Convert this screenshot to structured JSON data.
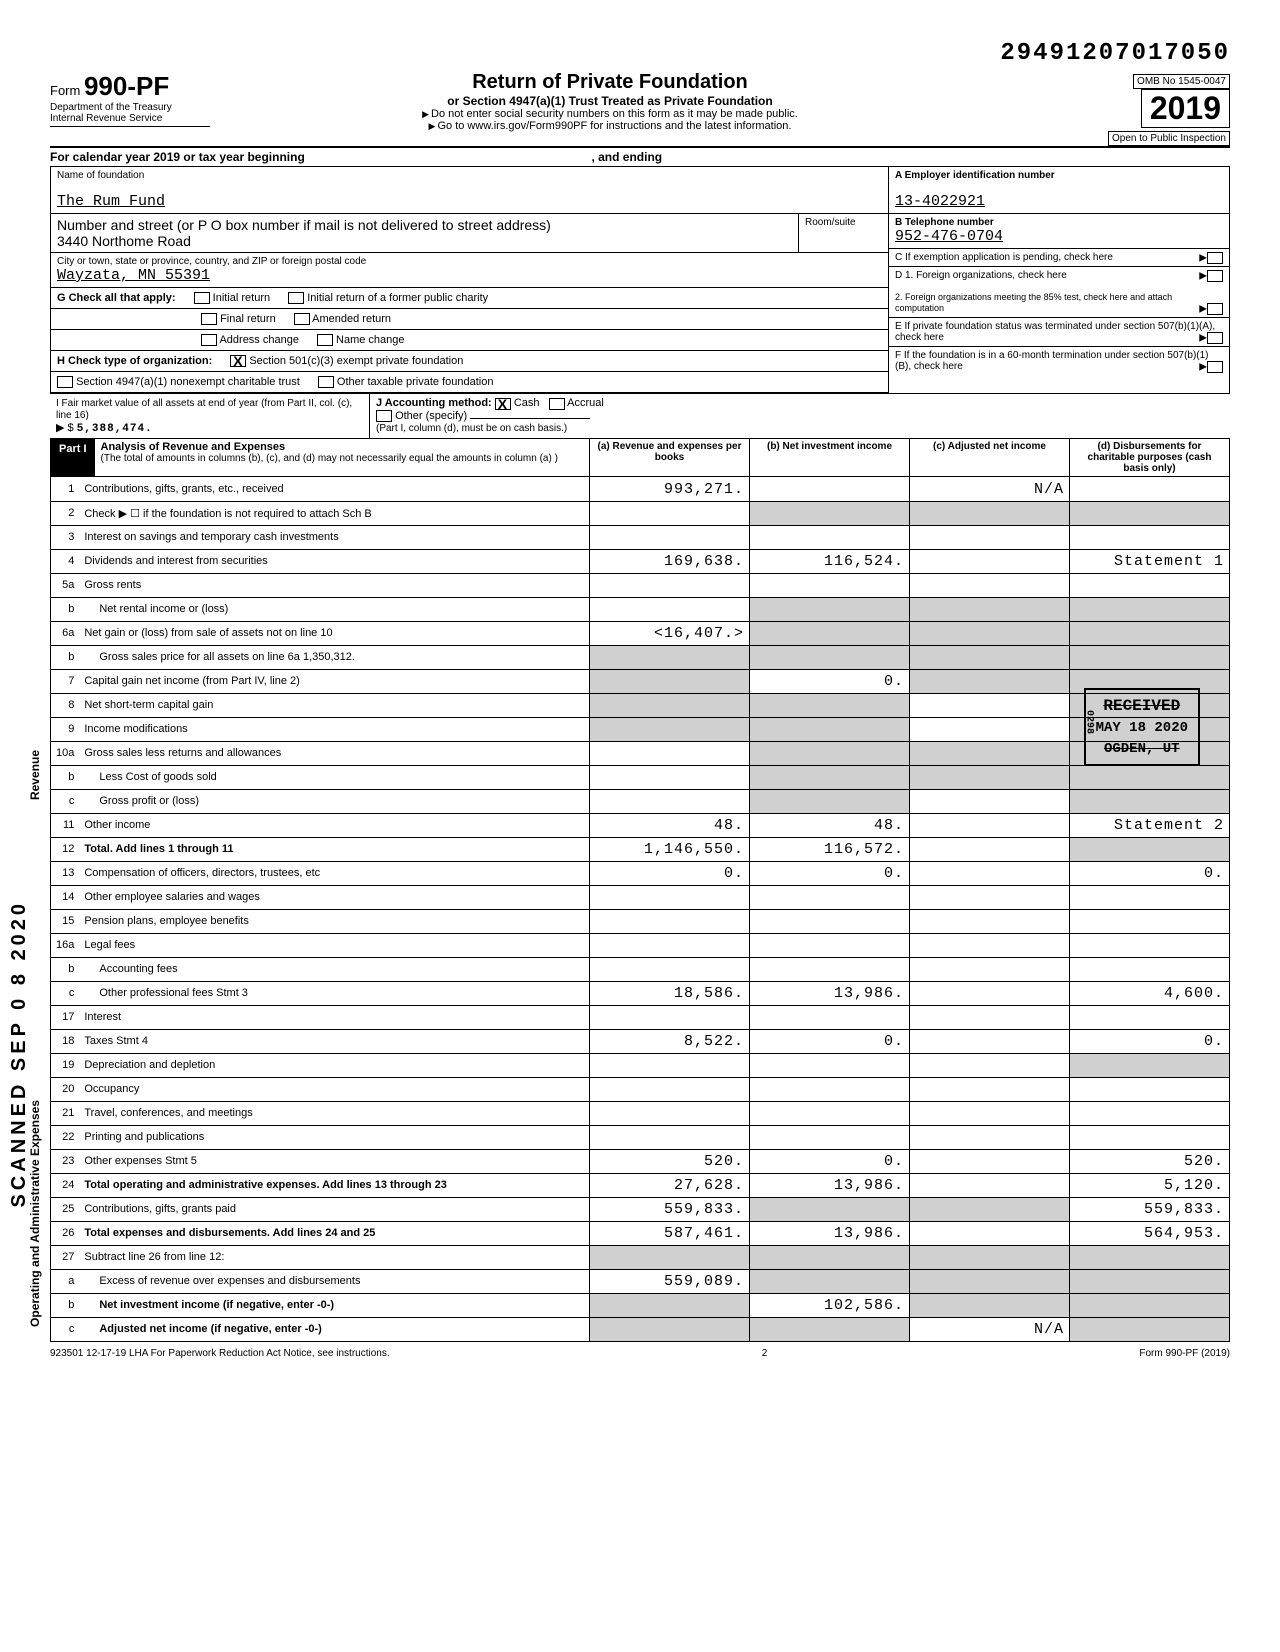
{
  "dln": "29491207017050",
  "header": {
    "form": "990-PF",
    "title": "Return of Private Foundation",
    "subtitle": "or Section 4947(a)(1) Trust Treated as Private Foundation",
    "warn1": "Do not enter social security numbers on this form as it may be made public.",
    "warn2": "Go to www.irs.gov/Form990PF for instructions and the latest information.",
    "dept": "Department of the Treasury",
    "irs": "Internal Revenue Service",
    "omb": "OMB No  1545-0047",
    "year": "2019",
    "inspect": "Open to Public Inspection",
    "calyear": "For calendar year 2019 or tax year beginning",
    "ending": ", and ending"
  },
  "foundation": {
    "name_label": "Name of foundation",
    "name": "The Rum Fund",
    "addr_label": "Number and street (or P O  box number if mail is not delivered to street address)",
    "addr": "3440 Northome Road",
    "room_label": "Room/suite",
    "city_label": "City or town, state or province, country, and ZIP or foreign postal code",
    "city": "Wayzata, MN   55391"
  },
  "boxA": {
    "label": "A  Employer identification number",
    "val": "13-4022921"
  },
  "boxB": {
    "label": "B  Telephone number",
    "val": "952-476-0704"
  },
  "boxC": {
    "label": "C  If exemption application is pending, check here"
  },
  "boxD": {
    "d1": "D  1. Foreign organizations, check here",
    "d2": "2.  Foreign organizations meeting the 85% test, check here and attach computation"
  },
  "boxE": {
    "label": "E  If private foundation status was terminated under section 507(b)(1)(A), check here"
  },
  "boxF": {
    "label": "F  If the foundation is in a 60-month termination under section 507(b)(1)(B), check here"
  },
  "G": {
    "label": "G  Check all that apply:",
    "opts": [
      "Initial return",
      "Initial return of a former public charity",
      "Final return",
      "Amended return",
      "Address change",
      "Name change"
    ]
  },
  "H": {
    "label": "H  Check type of organization:",
    "opt1": "Section 501(c)(3) exempt private foundation",
    "opt2": "Section 4947(a)(1) nonexempt charitable trust",
    "opt3": "Other taxable private foundation"
  },
  "I": {
    "label": "I  Fair market value of all assets at end of year (from Part II, col. (c), line 16)",
    "val": "5,388,474."
  },
  "J": {
    "label": "J  Accounting method:",
    "cash": "Cash",
    "accrual": "Accrual",
    "other": "Other (specify)",
    "note": "(Part I, column (d), must be on cash basis.)"
  },
  "part1": {
    "tag": "Part I",
    "title": "Analysis of Revenue and Expenses",
    "note": "(The total of amounts in columns (b), (c), and (d) may not necessarily equal the amounts in column (a) )",
    "colA": "(a) Revenue and expenses per books",
    "colB": "(b) Net investment income",
    "colC": "(c) Adjusted net income",
    "colD": "(d) Disbursements for charitable purposes (cash basis only)"
  },
  "lines": [
    {
      "n": "1",
      "lbl": "Contributions, gifts, grants, etc., received",
      "a": "993,271.",
      "b": "",
      "c": "N/A",
      "d": ""
    },
    {
      "n": "2",
      "lbl": "Check ▶ ☐  if the foundation is not required to attach Sch  B",
      "a": "",
      "b": "",
      "c": "",
      "d": "",
      "shadeBCD": true
    },
    {
      "n": "3",
      "lbl": "Interest on savings and temporary cash investments",
      "a": "",
      "b": "",
      "c": "",
      "d": ""
    },
    {
      "n": "4",
      "lbl": "Dividends and interest from securities",
      "a": "169,638.",
      "b": "116,524.",
      "c": "",
      "d": "Statement  1"
    },
    {
      "n": "5a",
      "lbl": "Gross rents",
      "a": "",
      "b": "",
      "c": "",
      "d": ""
    },
    {
      "n": "b",
      "lbl": "Net rental income or (loss)",
      "a": "",
      "b": "",
      "c": "",
      "d": "",
      "shadeBCD": true,
      "indent": true
    },
    {
      "n": "6a",
      "lbl": "Net gain or (loss) from sale of assets not on line 10",
      "a": "<16,407.>",
      "b": "",
      "c": "",
      "d": "",
      "shadeBCD": true
    },
    {
      "n": "b",
      "lbl": "Gross sales price for all assets on line 6a      1,350,312.",
      "a": "",
      "b": "",
      "c": "",
      "d": "",
      "shadeAll": true,
      "indent": true
    },
    {
      "n": "7",
      "lbl": "Capital gain net income (from Part IV, line 2)",
      "a": "",
      "b": "0.",
      "c": "",
      "d": "",
      "shadeA": true,
      "shadeCD": true
    },
    {
      "n": "8",
      "lbl": "Net short-term capital gain",
      "a": "",
      "b": "",
      "c": "",
      "d": "",
      "shadeAB": true,
      "shadeD": true
    },
    {
      "n": "9",
      "lbl": "Income modifications",
      "a": "",
      "b": "",
      "c": "",
      "d": "",
      "shadeAB": true,
      "shadeD": true
    },
    {
      "n": "10a",
      "lbl": "Gross sales less returns and allowances",
      "a": "",
      "b": "",
      "c": "",
      "d": "",
      "shadeBCD": true
    },
    {
      "n": "b",
      "lbl": "Less  Cost of goods sold",
      "a": "",
      "b": "",
      "c": "",
      "d": "",
      "shadeBCD": true,
      "indent": true
    },
    {
      "n": "c",
      "lbl": "Gross profit or (loss)",
      "a": "",
      "b": "",
      "c": "",
      "d": "",
      "shadeB": true,
      "shadeD": true,
      "indent": true
    },
    {
      "n": "11",
      "lbl": "Other income",
      "a": "48.",
      "b": "48.",
      "c": "",
      "d": "Statement  2"
    },
    {
      "n": "12",
      "lbl": "Total. Add lines 1 through 11",
      "a": "1,146,550.",
      "b": "116,572.",
      "c": "",
      "d": "",
      "bold": true,
      "shadeD": true
    },
    {
      "n": "13",
      "lbl": "Compensation of officers, directors, trustees, etc",
      "a": "0.",
      "b": "0.",
      "c": "",
      "d": "0."
    },
    {
      "n": "14",
      "lbl": "Other employee salaries and wages",
      "a": "",
      "b": "",
      "c": "",
      "d": ""
    },
    {
      "n": "15",
      "lbl": "Pension plans, employee benefits",
      "a": "",
      "b": "",
      "c": "",
      "d": ""
    },
    {
      "n": "16a",
      "lbl": "Legal fees",
      "a": "",
      "b": "",
      "c": "",
      "d": ""
    },
    {
      "n": "b",
      "lbl": "Accounting fees",
      "a": "",
      "b": "",
      "c": "",
      "d": "",
      "indent": true
    },
    {
      "n": "c",
      "lbl": "Other professional fees          Stmt 3",
      "a": "18,586.",
      "b": "13,986.",
      "c": "",
      "d": "4,600.",
      "indent": true
    },
    {
      "n": "17",
      "lbl": "Interest",
      "a": "",
      "b": "",
      "c": "",
      "d": ""
    },
    {
      "n": "18",
      "lbl": "Taxes                            Stmt 4",
      "a": "8,522.",
      "b": "0.",
      "c": "",
      "d": "0."
    },
    {
      "n": "19",
      "lbl": "Depreciation and depletion",
      "a": "",
      "b": "",
      "c": "",
      "d": "",
      "shadeD": true
    },
    {
      "n": "20",
      "lbl": "Occupancy",
      "a": "",
      "b": "",
      "c": "",
      "d": ""
    },
    {
      "n": "21",
      "lbl": "Travel, conferences, and meetings",
      "a": "",
      "b": "",
      "c": "",
      "d": ""
    },
    {
      "n": "22",
      "lbl": "Printing and publications",
      "a": "",
      "b": "",
      "c": "",
      "d": ""
    },
    {
      "n": "23",
      "lbl": "Other expenses                   Stmt 5",
      "a": "520.",
      "b": "0.",
      "c": "",
      "d": "520."
    },
    {
      "n": "24",
      "lbl": "Total operating and administrative expenses. Add lines 13 through 23",
      "a": "27,628.",
      "b": "13,986.",
      "c": "",
      "d": "5,120.",
      "bold": true
    },
    {
      "n": "25",
      "lbl": "Contributions, gifts, grants paid",
      "a": "559,833.",
      "b": "",
      "c": "",
      "d": "559,833.",
      "shadeBC": true
    },
    {
      "n": "26",
      "lbl": "Total expenses and disbursements. Add lines 24 and 25",
      "a": "587,461.",
      "b": "13,986.",
      "c": "",
      "d": "564,953.",
      "bold": true
    },
    {
      "n": "27",
      "lbl": "Subtract line 26 from line 12:",
      "a": "",
      "b": "",
      "c": "",
      "d": "",
      "shadeAll": true
    },
    {
      "n": "a",
      "lbl": "Excess of revenue over expenses and disbursements",
      "a": "559,089.",
      "b": "",
      "c": "",
      "d": "",
      "shadeBCD": true,
      "indent": true
    },
    {
      "n": "b",
      "lbl": "Net investment income (if negative, enter -0-)",
      "a": "",
      "b": "102,586.",
      "c": "",
      "d": "",
      "shadeA": true,
      "shadeCD": true,
      "indent": true,
      "bold": true
    },
    {
      "n": "c",
      "lbl": "Adjusted net income (if negative, enter -0-)",
      "a": "",
      "b": "",
      "c": "N/A",
      "d": "",
      "shadeAB": true,
      "shadeD": true,
      "indent": true,
      "bold": true
    }
  ],
  "stamp": {
    "received": "RECEIVED",
    "date": "MAY 18 2020",
    "loc": "OGDEN, UT",
    "code": "0298"
  },
  "scanned": "SCANNED  SEP 0 8 2020",
  "footer": {
    "left": "923501  12-17-19   LHA  For Paperwork Reduction Act Notice, see instructions.",
    "mid": "2",
    "right": "Form 990-PF (2019)"
  },
  "sidelabels": {
    "revenue": "Revenue",
    "expenses": "Operating and Administrative Expenses"
  },
  "colors": {
    "shade": "#d0d0d0",
    "black": "#000000"
  }
}
